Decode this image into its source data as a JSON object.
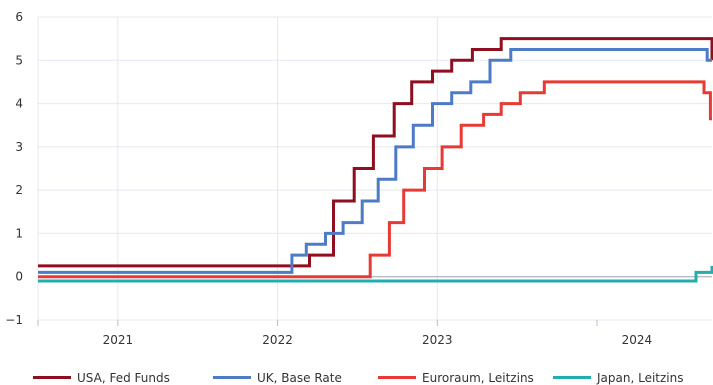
{
  "chart_data": {
    "type": "line",
    "step": true,
    "x_unit": "years",
    "xlim": [
      2020.5,
      2024.72
    ],
    "ylim": [
      -1,
      6
    ],
    "y_ticks": [
      -1,
      0,
      1,
      2,
      3,
      4,
      5,
      6
    ],
    "y_tick_labels": [
      "−1",
      "0",
      "1",
      "2",
      "3",
      "4",
      "5",
      "6"
    ],
    "x_categories": [
      "2021",
      "2022",
      "2023",
      "2024"
    ],
    "x_boundaries": [
      2021,
      2022,
      2023,
      2024
    ],
    "grid": true,
    "legend_position": "bottom",
    "series": [
      {
        "name": "USA, Fed Funds",
        "color": "#8f0e1f",
        "points": [
          [
            2020.5,
            0.25
          ],
          [
            2021.95,
            0.25
          ],
          [
            2022.2,
            0.5
          ],
          [
            2022.35,
            1.75
          ],
          [
            2022.48,
            2.5
          ],
          [
            2022.6,
            3.25
          ],
          [
            2022.73,
            4.0
          ],
          [
            2022.84,
            4.5
          ],
          [
            2022.97,
            4.75
          ],
          [
            2023.09,
            5.0
          ],
          [
            2023.22,
            5.25
          ],
          [
            2023.4,
            5.5
          ],
          [
            2024.7,
            5.5
          ],
          [
            2024.72,
            5.0
          ]
        ]
      },
      {
        "name": "UK, Base Rate",
        "color": "#4d7bc6",
        "points": [
          [
            2020.5,
            0.1
          ],
          [
            2021.94,
            0.1
          ],
          [
            2022.09,
            0.5
          ],
          [
            2022.18,
            0.75
          ],
          [
            2022.3,
            1.0
          ],
          [
            2022.41,
            1.25
          ],
          [
            2022.53,
            1.75
          ],
          [
            2022.63,
            2.25
          ],
          [
            2022.74,
            3.0
          ],
          [
            2022.85,
            3.5
          ],
          [
            2022.97,
            4.0
          ],
          [
            2023.09,
            4.25
          ],
          [
            2023.21,
            4.5
          ],
          [
            2023.33,
            5.0
          ],
          [
            2023.46,
            5.25
          ],
          [
            2024.59,
            5.25
          ],
          [
            2024.69,
            5.0
          ],
          [
            2024.72,
            5.0
          ]
        ]
      },
      {
        "name": "Euroraum, Leitzins",
        "color": "#e83a35",
        "points": [
          [
            2020.5,
            0.0
          ],
          [
            2022.48,
            0.0
          ],
          [
            2022.58,
            0.5
          ],
          [
            2022.7,
            1.25
          ],
          [
            2022.79,
            2.0
          ],
          [
            2022.92,
            2.5
          ],
          [
            2023.03,
            3.0
          ],
          [
            2023.15,
            3.5
          ],
          [
            2023.29,
            3.75
          ],
          [
            2023.4,
            4.0
          ],
          [
            2023.52,
            4.25
          ],
          [
            2023.67,
            4.5
          ],
          [
            2024.45,
            4.5
          ],
          [
            2024.67,
            4.25
          ],
          [
            2024.71,
            3.65
          ],
          [
            2024.72,
            3.65
          ]
        ]
      },
      {
        "name": "Japan, Leitzins",
        "color": "#22adaf",
        "points": [
          [
            2020.5,
            -0.1
          ],
          [
            2024.25,
            -0.1
          ],
          [
            2024.62,
            0.1
          ],
          [
            2024.72,
            0.25
          ]
        ]
      }
    ]
  }
}
